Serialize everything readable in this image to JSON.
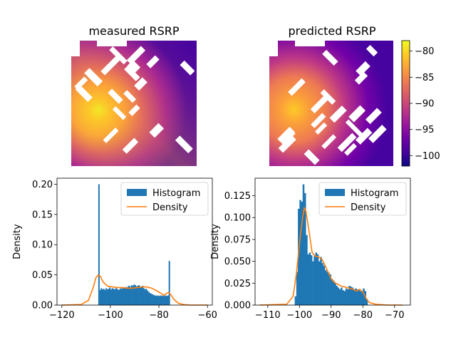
{
  "colors": {
    "histogram": "#1f77b4",
    "density": "#ff7f0e",
    "obstacle": "#ffffff",
    "colormap": [
      "#0d0887",
      "#46039f",
      "#7201a8",
      "#9c179e",
      "#bd3786",
      "#d8576b",
      "#ed7953",
      "#fb9f3a",
      "#fdca26",
      "#f0f921"
    ]
  },
  "chart_data": [
    {
      "type": "heatmap",
      "title": "measured RSRP",
      "colormap": "plasma",
      "value_range": [
        -102,
        -78
      ],
      "hotspot": "left-center",
      "obstacles": "white building blocks in a diagonal grid"
    },
    {
      "type": "heatmap",
      "title": "predicted RSRP",
      "colormap": "plasma",
      "value_range": [
        -102,
        -78
      ],
      "hotspot": "left-center",
      "obstacles": "white building blocks in a diagonal grid",
      "colorbar": {
        "ticks": [
          -80,
          -85,
          -90,
          -95,
          -100
        ],
        "placement": "right"
      }
    },
    {
      "type": "bar",
      "title": "",
      "xlabel": "",
      "ylabel": "Density",
      "xlim": [
        -122,
        -58
      ],
      "ylim": [
        0,
        0.21
      ],
      "xticks": [
        -120,
        -100,
        -80,
        -60
      ],
      "yticks": [
        0.0,
        0.05,
        0.1,
        0.15,
        0.2
      ],
      "ytick_labels": [
        "0.00",
        "0.05",
        "0.10",
        "0.15",
        "0.20"
      ],
      "legend": {
        "placement": "top-right",
        "entries": [
          "Histogram",
          "Density"
        ]
      },
      "hist_x0": -105,
      "hist_width": 0.5,
      "hist_values": [
        0.2,
        0.025,
        0.028,
        0.026,
        0.027,
        0.025,
        0.028,
        0.026,
        0.027,
        0.029,
        0.026,
        0.028,
        0.027,
        0.026,
        0.028,
        0.027,
        0.025,
        0.026,
        0.028,
        0.027,
        0.029,
        0.028,
        0.03,
        0.029,
        0.031,
        0.032,
        0.03,
        0.033,
        0.032,
        0.034,
        0.033,
        0.031,
        0.032,
        0.033,
        0.031,
        0.03,
        0.032,
        0.028,
        0.026,
        0.027,
        0.024,
        0.022,
        0.02,
        0.019,
        0.018,
        0.017,
        0.016,
        0.016,
        0.015,
        0.016,
        0.015,
        0.016,
        0.015,
        0.016,
        0.015,
        0.016,
        0.015,
        0.016,
        0.073
      ],
      "density_x": [
        -120,
        -112,
        -109,
        -107,
        -106,
        -105,
        -104,
        -103,
        -101,
        -99,
        -97,
        -95,
        -93,
        -91,
        -89,
        -87,
        -85,
        -83,
        -81,
        -79,
        -78,
        -77,
        -76,
        -75,
        -74,
        -72,
        -70,
        -67,
        -64,
        -60
      ],
      "density_y": [
        0,
        0.001,
        0.008,
        0.03,
        0.045,
        0.05,
        0.047,
        0.038,
        0.031,
        0.03,
        0.029,
        0.029,
        0.028,
        0.028,
        0.029,
        0.03,
        0.03,
        0.028,
        0.024,
        0.019,
        0.016,
        0.019,
        0.021,
        0.017,
        0.01,
        0.003,
        0.001,
        0,
        0,
        0
      ]
    },
    {
      "type": "bar",
      "title": "",
      "xlabel": "",
      "ylabel": "Density",
      "xlim": [
        -114,
        -65
      ],
      "ylim": [
        0,
        0.145
      ],
      "xticks": [
        -110,
        -100,
        -90,
        -80,
        -70
      ],
      "yticks": [
        0.0,
        0.025,
        0.05,
        0.075,
        0.1,
        0.125
      ],
      "ytick_labels": [
        "0.000",
        "0.025",
        "0.050",
        "0.075",
        "0.100",
        "0.125"
      ],
      "legend": {
        "placement": "top-right",
        "entries": [
          "Histogram",
          "Density"
        ]
      },
      "hist_x0": -101.5,
      "hist_width": 0.5,
      "hist_values": [
        0.01,
        0.038,
        0.11,
        0.12,
        0.118,
        0.138,
        0.128,
        0.08,
        0.058,
        0.06,
        0.057,
        0.05,
        0.056,
        0.06,
        0.058,
        0.05,
        0.055,
        0.048,
        0.045,
        0.04,
        0.038,
        0.037,
        0.035,
        0.03,
        0.028,
        0.025,
        0.022,
        0.02,
        0.018,
        0.02,
        0.017,
        0.016,
        0.019,
        0.018,
        0.022,
        0.021,
        0.02,
        0.018,
        0.019,
        0.018,
        0.017,
        0.016,
        0.015,
        0.019,
        0.016,
        0.007
      ],
      "density_x": [
        -112.5,
        -104,
        -102,
        -101,
        -100,
        -99,
        -98.5,
        -98,
        -97,
        -96,
        -95,
        -94,
        -93,
        -92,
        -91,
        -90,
        -89,
        -88,
        -87,
        -86,
        -85,
        -84,
        -83,
        -82,
        -81,
        -80,
        -79,
        -78,
        -76,
        -72,
        -67.5
      ],
      "density_y": [
        0,
        0.001,
        0.01,
        0.035,
        0.07,
        0.1,
        0.111,
        0.108,
        0.085,
        0.06,
        0.056,
        0.055,
        0.053,
        0.046,
        0.038,
        0.03,
        0.026,
        0.024,
        0.022,
        0.021,
        0.02,
        0.019,
        0.018,
        0.016,
        0.018,
        0.015,
        0.008,
        0.003,
        0.001,
        0,
        0
      ]
    }
  ]
}
